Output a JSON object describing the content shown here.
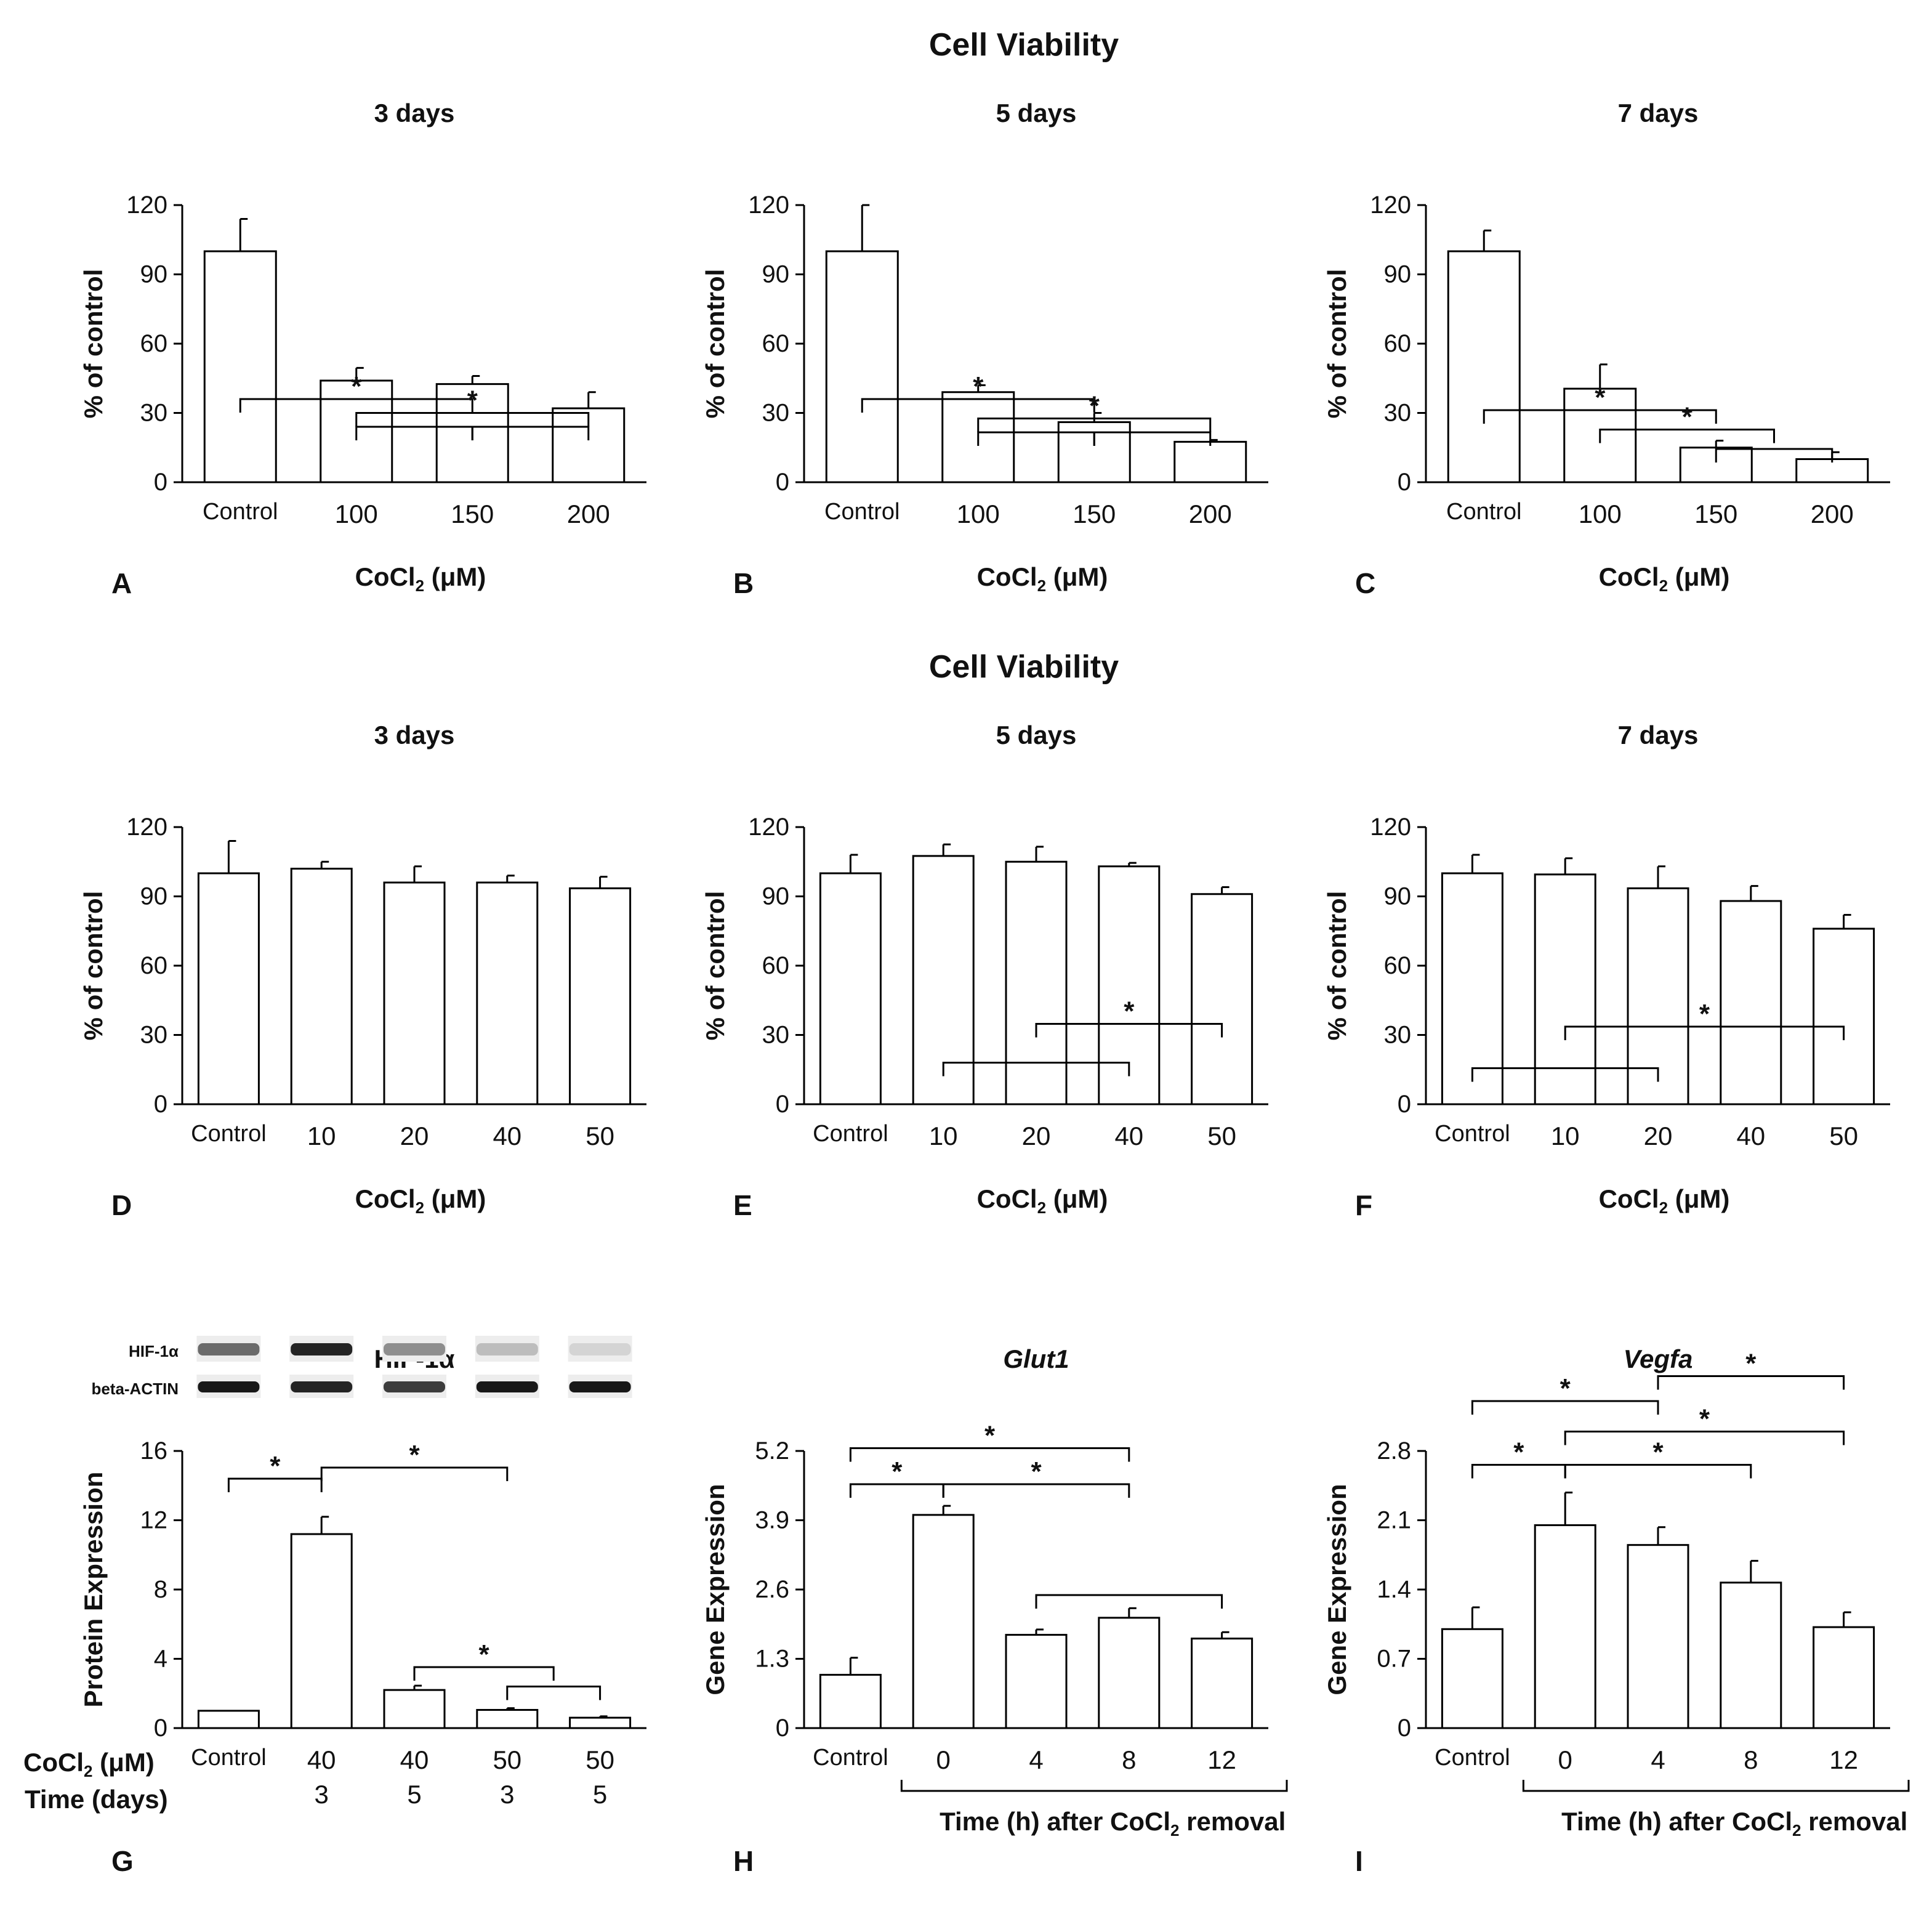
{
  "figure": {
    "section_titles": [
      "Cell Viability",
      "Cell Viability"
    ],
    "colors": {
      "bar_fill": "#ffffff",
      "stroke": "#000000",
      "text": "#111111"
    }
  },
  "chart_data": [
    {
      "type": "bar",
      "panel_label": "A",
      "title": "3 days",
      "ylabel": "% of control",
      "xlabel": "CoCl₂ (μM)",
      "categories": [
        "Control",
        "100",
        "150",
        "200"
      ],
      "values": [
        100,
        44,
        42.5,
        32
      ],
      "errors": [
        14,
        5.5,
        3.5,
        7
      ],
      "yticks": [
        "0",
        "30",
        "60",
        "90",
        "120"
      ],
      "ylim": [
        0,
        120
      ],
      "grid": false,
      "brackets": [
        {
          "from": 0,
          "to": 2,
          "level": 0.7,
          "label": "*"
        },
        {
          "from": 1,
          "to": 3,
          "level": 0.75,
          "label": "*"
        },
        {
          "from": 1,
          "to": 2,
          "level": 0.8,
          "label": ""
        },
        {
          "from": 2,
          "to": 3,
          "level": 0.8,
          "label": ""
        }
      ]
    },
    {
      "type": "bar",
      "panel_label": "B",
      "title": "5 days",
      "ylabel": "% of control",
      "xlabel": "CoCl₂ (μM)",
      "categories": [
        "Control",
        "100",
        "150",
        "200"
      ],
      "values": [
        100,
        39,
        26,
        17.5
      ],
      "errors": [
        20,
        3,
        4,
        0.8
      ],
      "yticks": [
        "0",
        "30",
        "60",
        "90",
        "120"
      ],
      "ylim": [
        0,
        120
      ],
      "grid": false,
      "brackets": [
        {
          "from": 0,
          "to": 2,
          "level": 0.7,
          "label": "*"
        },
        {
          "from": 1,
          "to": 3,
          "level": 0.77,
          "label": "*"
        },
        {
          "from": 1,
          "to": 2,
          "level": 0.82,
          "label": ""
        },
        {
          "from": 2,
          "to": 3,
          "level": 0.82,
          "label": ""
        }
      ]
    },
    {
      "type": "bar",
      "panel_label": "C",
      "title": "7 days",
      "ylabel": "% of control",
      "xlabel": "CoCl₂ (μM)",
      "categories": [
        "Control",
        "100",
        "150",
        "200"
      ],
      "values": [
        100,
        40.5,
        15,
        10
      ],
      "errors": [
        9,
        10.5,
        3,
        3
      ],
      "yticks": [
        "0",
        "30",
        "60",
        "90",
        "120"
      ],
      "ylim": [
        0,
        120
      ],
      "grid": false,
      "brackets": [
        {
          "from": 0,
          "to": 2,
          "level": 0.74,
          "label": "*"
        },
        {
          "from": 1,
          "to": 2.5,
          "level": 0.81,
          "label": "*"
        },
        {
          "from": 2,
          "to": 3,
          "level": 0.88,
          "label": ""
        }
      ]
    },
    {
      "type": "bar",
      "panel_label": "D",
      "title": "3 days",
      "ylabel": "% of control",
      "xlabel": "CoCl₂ (μM)",
      "categories": [
        "Control",
        "10",
        "20",
        "40",
        "50"
      ],
      "values": [
        100,
        102,
        96,
        96,
        93.5
      ],
      "errors": [
        14,
        3,
        7,
        3,
        5
      ],
      "yticks": [
        "0",
        "30",
        "60",
        "90",
        "120"
      ],
      "ylim": [
        0,
        120
      ],
      "grid": false,
      "brackets": []
    },
    {
      "type": "bar",
      "panel_label": "E",
      "title": "5 days",
      "ylabel": "% of control",
      "xlabel": "CoCl₂ (μM)",
      "categories": [
        "Control",
        "10",
        "20",
        "40",
        "50"
      ],
      "values": [
        100,
        107.5,
        105,
        103,
        91
      ],
      "errors": [
        8,
        5,
        6.5,
        1.5,
        3
      ],
      "yticks": [
        "0",
        "30",
        "60",
        "90",
        "120"
      ],
      "ylim": [
        0,
        120
      ],
      "grid": false,
      "brackets": [
        {
          "from": 2,
          "to": 4,
          "level": 0.71,
          "label": "*"
        },
        {
          "from": 1,
          "to": 3,
          "level": 0.85,
          "label": ""
        }
      ]
    },
    {
      "type": "bar",
      "panel_label": "F",
      "title": "7 days",
      "ylabel": "% of control",
      "xlabel": "CoCl₂ (μM)",
      "categories": [
        "Control",
        "10",
        "20",
        "40",
        "50"
      ],
      "values": [
        100,
        99.5,
        93.5,
        88,
        76
      ],
      "errors": [
        8,
        7,
        9.5,
        6.5,
        6
      ],
      "yticks": [
        "0",
        "30",
        "60",
        "90",
        "120"
      ],
      "ylim": [
        0,
        120
      ],
      "grid": false,
      "brackets": [
        {
          "from": 1,
          "to": 4,
          "level": 0.72,
          "label": "*"
        },
        {
          "from": 0,
          "to": 2,
          "level": 0.87,
          "label": ""
        }
      ]
    },
    {
      "type": "bar",
      "panel_label": "G",
      "title": "HIF-1α",
      "ylabel": "Protein Expression",
      "xlabel": "",
      "categories": [
        "Control",
        "40",
        "40",
        "50",
        "50"
      ],
      "sublabels": [
        "",
        "3",
        "5",
        "3",
        "5"
      ],
      "row_labels": [
        "CoCl₂ (μM)",
        "Time (days)"
      ],
      "values": [
        1,
        11.2,
        2.2,
        1.05,
        0.6
      ],
      "errors": [
        0,
        1,
        0.25,
        0.1,
        0.08
      ],
      "yticks": [
        "0",
        "4",
        "8",
        "12",
        "16"
      ],
      "ylim": [
        0,
        16
      ],
      "grid": false,
      "blot": {
        "rows": [
          "HIF-1α",
          "beta-ACTIN"
        ],
        "hif_intensity": [
          0.55,
          0.85,
          0.4,
          0.2,
          0.1
        ],
        "actin_intensity": [
          0.9,
          0.85,
          0.75,
          0.9,
          0.9
        ]
      },
      "brackets": [
        {
          "from": 0,
          "to": 1,
          "level": 0.1,
          "label": "*"
        },
        {
          "from": 1,
          "to": 3,
          "level": 0.06,
          "label": "*"
        },
        {
          "from": 2,
          "to": 3.5,
          "level": 0.78,
          "label": "*"
        },
        {
          "from": 3,
          "to": 4,
          "level": 0.85,
          "label": ""
        }
      ]
    },
    {
      "type": "bar",
      "panel_label": "H",
      "title": "Glut1",
      "title_italic": true,
      "ylabel": "Gene Expression",
      "xlabel": "Time (h) after CoCl₂ removal",
      "categories": [
        "Control",
        "0",
        "4",
        "8",
        "12"
      ],
      "values": [
        1,
        4,
        1.75,
        2.07,
        1.68
      ],
      "errors": [
        0.32,
        0.17,
        0.1,
        0.18,
        0.12
      ],
      "yticks": [
        "0",
        "1.3",
        "2.6",
        "3.9",
        "5.2"
      ],
      "ylim": [
        0,
        5.2
      ],
      "grid": false,
      "brackets": [
        {
          "from": 0,
          "to": 3,
          "level": -0.01,
          "label": "*"
        },
        {
          "from": 0,
          "to": 1,
          "level": 0.12,
          "label": "*"
        },
        {
          "from": 1,
          "to": 3,
          "level": 0.12,
          "label": "*"
        },
        {
          "from": 2,
          "to": 4,
          "level": 0.52,
          "label": ""
        }
      ]
    },
    {
      "type": "bar",
      "panel_label": "I",
      "title": "Vegfa",
      "title_italic": true,
      "ylabel": "Gene Expression",
      "xlabel": "Time (h) after CoCl₂ removal",
      "categories": [
        "Control",
        "0",
        "4",
        "8",
        "12"
      ],
      "values": [
        1,
        2.05,
        1.85,
        1.47,
        1.02
      ],
      "errors": [
        0.22,
        0.33,
        0.18,
        0.22,
        0.15
      ],
      "yticks": [
        "0",
        "0.7",
        "1.4",
        "2.1",
        "2.8"
      ],
      "ylim": [
        0,
        2.8
      ],
      "grid": false,
      "brackets": [
        {
          "from": 2,
          "to": 4,
          "level": -0.27,
          "label": "*"
        },
        {
          "from": 0,
          "to": 2,
          "level": -0.18,
          "label": "*"
        },
        {
          "from": 1,
          "to": 4,
          "level": -0.07,
          "label": "*"
        },
        {
          "from": 0,
          "to": 1,
          "level": 0.05,
          "label": "*"
        },
        {
          "from": 1,
          "to": 3,
          "level": 0.05,
          "label": "*"
        }
      ]
    }
  ]
}
